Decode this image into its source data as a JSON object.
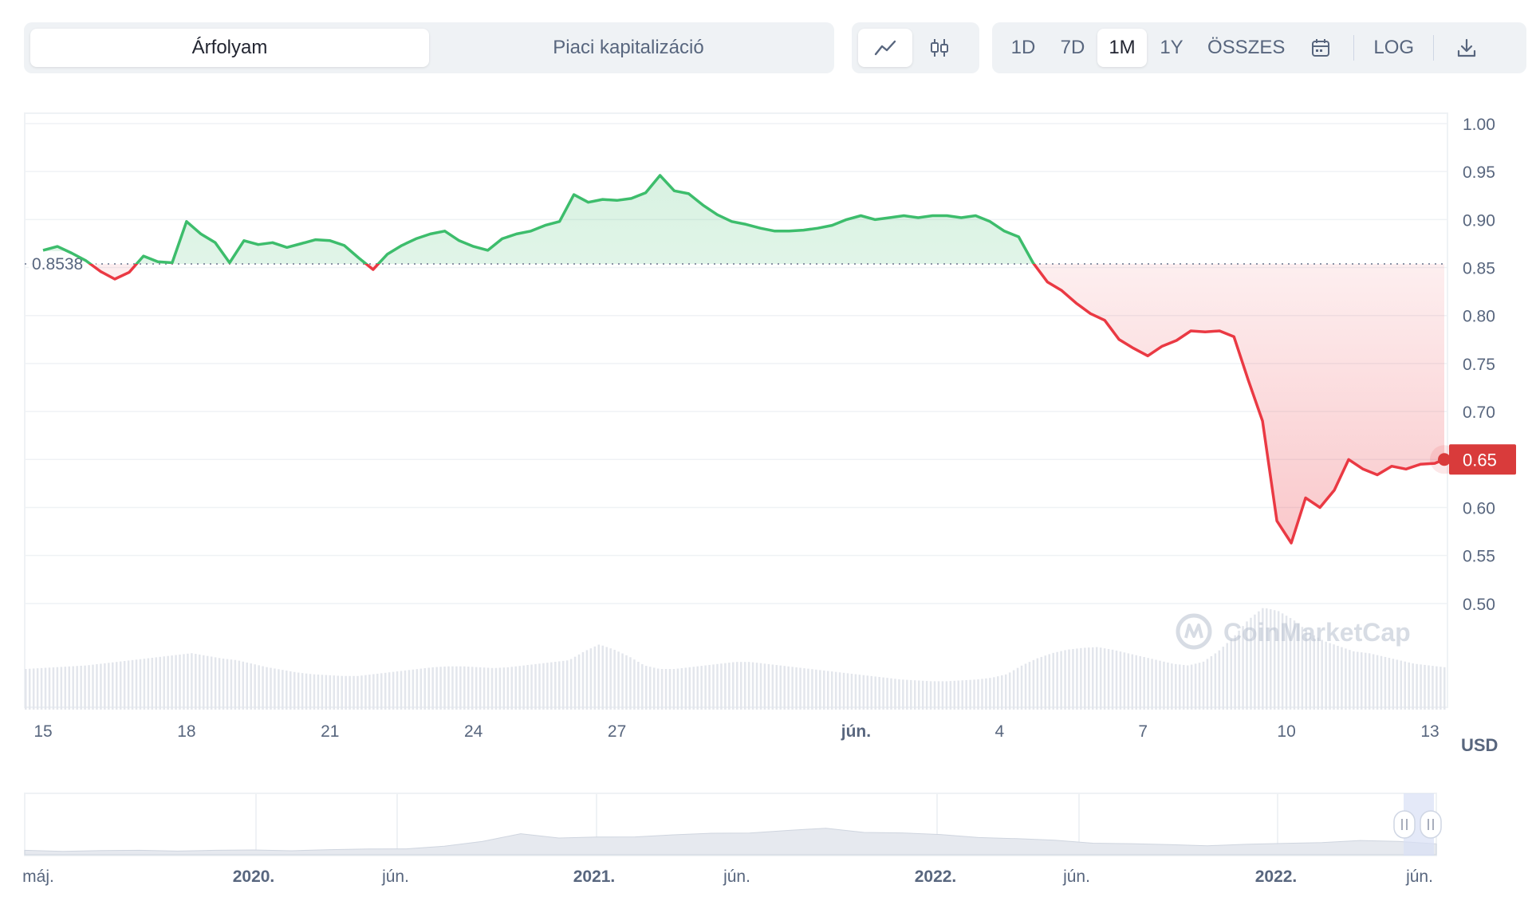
{
  "tabs": {
    "type": [
      {
        "label": "Árfolyam",
        "active": true
      },
      {
        "label": "Piaci kapitalizáció",
        "active": false
      }
    ],
    "chart_style": [
      {
        "icon": "line-chart-icon",
        "active": true
      },
      {
        "icon": "candlestick-icon",
        "active": false
      }
    ],
    "ranges": [
      {
        "label": "1D",
        "active": false
      },
      {
        "label": "7D",
        "active": false
      },
      {
        "label": "1M",
        "active": true
      },
      {
        "label": "1Y",
        "active": false
      },
      {
        "label": "ÖSSZES",
        "active": false
      }
    ],
    "calendar_icon": "calendar-icon",
    "log_label": "LOG",
    "download_icon": "download-icon"
  },
  "colors": {
    "up": "#3dbd6c",
    "down": "#ea3943",
    "badge": "#d93b3b",
    "grid": "#eff2f5",
    "text": "#58667e"
  },
  "watermark": "CoinMarketCap",
  "chart_data": {
    "type": "line",
    "currency": "USD",
    "baseline": {
      "value": 0.8538,
      "label": "0.8538"
    },
    "current": {
      "value": 0.65,
      "label": "0.65"
    },
    "ylim": [
      0.45,
      1.0
    ],
    "yticks": [
      "1.00",
      "0.95",
      "0.90",
      "0.85",
      "0.80",
      "0.75",
      "0.70",
      "0.65",
      "0.60",
      "0.55",
      "0.50"
    ],
    "xlim": [
      0,
      29.3
    ],
    "xticks": [
      {
        "x": 0,
        "label": "15"
      },
      {
        "x": 3,
        "label": "18"
      },
      {
        "x": 6,
        "label": "21"
      },
      {
        "x": 9,
        "label": "24"
      },
      {
        "x": 12,
        "label": "27"
      },
      {
        "x": 17,
        "label": "jún.",
        "bold": true
      },
      {
        "x": 20,
        "label": "4"
      },
      {
        "x": 23,
        "label": "7"
      },
      {
        "x": 26,
        "label": "10"
      },
      {
        "x": 29,
        "label": "13"
      }
    ],
    "series": [
      {
        "x": [
          0,
          0.3,
          0.6,
          0.9,
          1.2,
          1.5,
          1.8,
          2.1,
          2.4,
          2.7,
          3.0,
          3.3,
          3.6,
          3.9,
          4.2,
          4.5,
          4.8,
          5.1,
          5.4,
          5.7,
          6.0,
          6.3,
          6.6,
          6.9,
          7.2,
          7.5,
          7.8,
          8.1,
          8.4,
          8.7,
          9.0,
          9.3,
          9.6,
          9.9,
          10.2,
          10.5,
          10.8,
          11.1,
          11.4,
          11.7,
          12.0,
          12.3,
          12.6,
          12.9,
          13.2,
          13.5,
          13.8,
          14.1,
          14.4,
          14.7,
          15.0,
          15.3,
          15.6,
          15.9,
          16.2,
          16.5,
          16.8,
          17.1,
          17.4,
          17.7,
          18.0,
          18.3,
          18.6,
          18.9,
          19.2,
          19.5,
          19.8,
          20.1,
          20.4,
          20.7,
          21.0,
          21.3,
          21.6,
          21.9,
          22.2,
          22.5,
          22.8,
          23.1,
          23.4,
          23.7,
          24.0,
          24.3,
          24.6,
          24.9,
          25.2,
          25.5,
          25.8,
          26.1,
          26.4,
          26.7,
          27.0,
          27.3,
          27.6,
          27.9,
          28.2,
          28.5,
          28.8,
          29.1,
          29.3
        ],
        "values": [
          0.868,
          0.872,
          0.865,
          0.857,
          0.846,
          0.838,
          0.845,
          0.862,
          0.856,
          0.855,
          0.898,
          0.885,
          0.876,
          0.855,
          0.878,
          0.874,
          0.876,
          0.871,
          0.875,
          0.879,
          0.878,
          0.873,
          0.86,
          0.848,
          0.864,
          0.873,
          0.88,
          0.885,
          0.888,
          0.878,
          0.872,
          0.868,
          0.88,
          0.885,
          0.888,
          0.894,
          0.898,
          0.926,
          0.918,
          0.921,
          0.92,
          0.922,
          0.928,
          0.946,
          0.93,
          0.927,
          0.915,
          0.905,
          0.898,
          0.895,
          0.891,
          0.888,
          0.888,
          0.889,
          0.891,
          0.894,
          0.9,
          0.904,
          0.9,
          0.902,
          0.904,
          0.902,
          0.904,
          0.904,
          0.902,
          0.904,
          0.898,
          0.888,
          0.882,
          0.855,
          0.835,
          0.826,
          0.813,
          0.802,
          0.795,
          0.775,
          0.766,
          0.758,
          0.768,
          0.774,
          0.784,
          0.783,
          0.784,
          0.778,
          0.733,
          0.69,
          0.586,
          0.563,
          0.61,
          0.6,
          0.618,
          0.65,
          0.64,
          0.634,
          0.643,
          0.64,
          0.645,
          0.646,
          0.65
        ]
      }
    ],
    "volume": [
      0.3,
      0.31,
      0.32,
      0.33,
      0.34,
      0.36,
      0.38,
      0.4,
      0.42,
      0.44,
      0.46,
      0.48,
      0.45,
      0.42,
      0.4,
      0.36,
      0.32,
      0.29,
      0.26,
      0.24,
      0.23,
      0.22,
      0.22,
      0.24,
      0.26,
      0.28,
      0.3,
      0.32,
      0.33,
      0.33,
      0.32,
      0.31,
      0.32,
      0.34,
      0.36,
      0.38,
      0.4,
      0.5,
      0.58,
      0.52,
      0.44,
      0.34,
      0.3,
      0.3,
      0.32,
      0.34,
      0.36,
      0.38,
      0.38,
      0.36,
      0.34,
      0.32,
      0.3,
      0.28,
      0.26,
      0.24,
      0.22,
      0.2,
      0.18,
      0.17,
      0.16,
      0.16,
      0.17,
      0.18,
      0.2,
      0.24,
      0.34,
      0.42,
      0.48,
      0.52,
      0.54,
      0.55,
      0.52,
      0.48,
      0.44,
      0.4,
      0.36,
      0.34,
      0.38,
      0.5,
      0.66,
      0.86,
      1.0,
      0.96,
      0.86,
      0.72,
      0.62,
      0.56,
      0.5,
      0.48,
      0.44,
      0.4,
      0.36,
      0.34,
      0.32
    ],
    "navigator": {
      "ticks": [
        {
          "label": "máj.",
          "bold": false
        },
        {
          "label": "2020.",
          "bold": true
        },
        {
          "label": "jún.",
          "bold": false
        },
        {
          "label": "2021.",
          "bold": true
        },
        {
          "label": "jún.",
          "bold": false
        },
        {
          "label": "2022.",
          "bold": true
        },
        {
          "label": "jún.",
          "bold": false
        },
        {
          "label": "2022.",
          "bold": true
        },
        {
          "label": "jún.",
          "bold": false
        }
      ],
      "profile": [
        0.02,
        0.02,
        0.02,
        0.02,
        0.03,
        0.03,
        0.03,
        0.04,
        0.05,
        0.06,
        0.1,
        0.16,
        0.3,
        0.58,
        0.42,
        0.44,
        0.48,
        0.52,
        0.56,
        0.6,
        0.66,
        0.72,
        0.62,
        0.58,
        0.52,
        0.46,
        0.4,
        0.34,
        0.28,
        0.24,
        0.2,
        0.2,
        0.22,
        0.24,
        0.3,
        0.34,
        0.3,
        0.26
      ]
    }
  }
}
